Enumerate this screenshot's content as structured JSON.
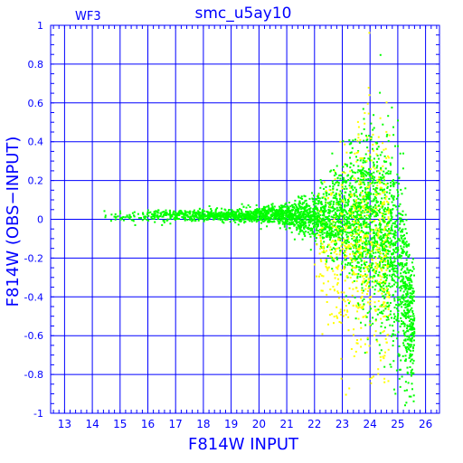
{
  "chart_data": {
    "type": "scatter",
    "title": "smc_u5ay10",
    "panel_label": "WF3",
    "xlabel": "F814W INPUT",
    "ylabel": "F814W (OBS−INPUT)",
    "xlim": [
      12.5,
      26.5
    ],
    "ylim": [
      -1,
      1
    ],
    "x_ticks": [
      13,
      14,
      15,
      16,
      17,
      18,
      19,
      20,
      21,
      22,
      23,
      24,
      25,
      26
    ],
    "y_ticks": [
      1,
      0.8,
      0.6,
      0.4,
      0.2,
      0,
      -0.2,
      -0.4,
      -0.6,
      -0.8,
      -1
    ],
    "grid": true,
    "colors": {
      "axes": "#0000ff",
      "background": "#ffffff"
    },
    "series": [
      {
        "color": "#00ff00",
        "profile": [
          {
            "x": 14.0,
            "y_mean": 0.01,
            "spread": 0.02
          },
          {
            "x": 16.0,
            "y_mean": 0.02,
            "spread": 0.03
          },
          {
            "x": 18.0,
            "y_mean": 0.02,
            "spread": 0.03
          },
          {
            "x": 20.0,
            "y_mean": 0.02,
            "spread": 0.04
          },
          {
            "x": 21.0,
            "y_mean": 0.02,
            "spread": 0.06
          },
          {
            "x": 22.0,
            "y_mean": 0.01,
            "spread": 0.12
          },
          {
            "x": 23.0,
            "y_mean": 0.0,
            "spread": 0.25
          },
          {
            "x": 24.0,
            "y_mean": 0.0,
            "spread": 0.45
          },
          {
            "x": 25.0,
            "y_mean": -0.2,
            "spread": 0.55
          },
          {
            "x": 25.6,
            "y_mean": -0.6,
            "spread": 0.3
          }
        ]
      },
      {
        "color": "#ffff00",
        "profile": [
          {
            "x": 22.0,
            "y_mean": -0.15,
            "spread": 0.35
          },
          {
            "x": 23.0,
            "y_mean": -0.2,
            "spread": 0.5
          },
          {
            "x": 24.0,
            "y_mean": -0.1,
            "spread": 0.6
          },
          {
            "x": 24.7,
            "y_mean": -0.2,
            "spread": 0.6
          }
        ]
      }
    ]
  }
}
